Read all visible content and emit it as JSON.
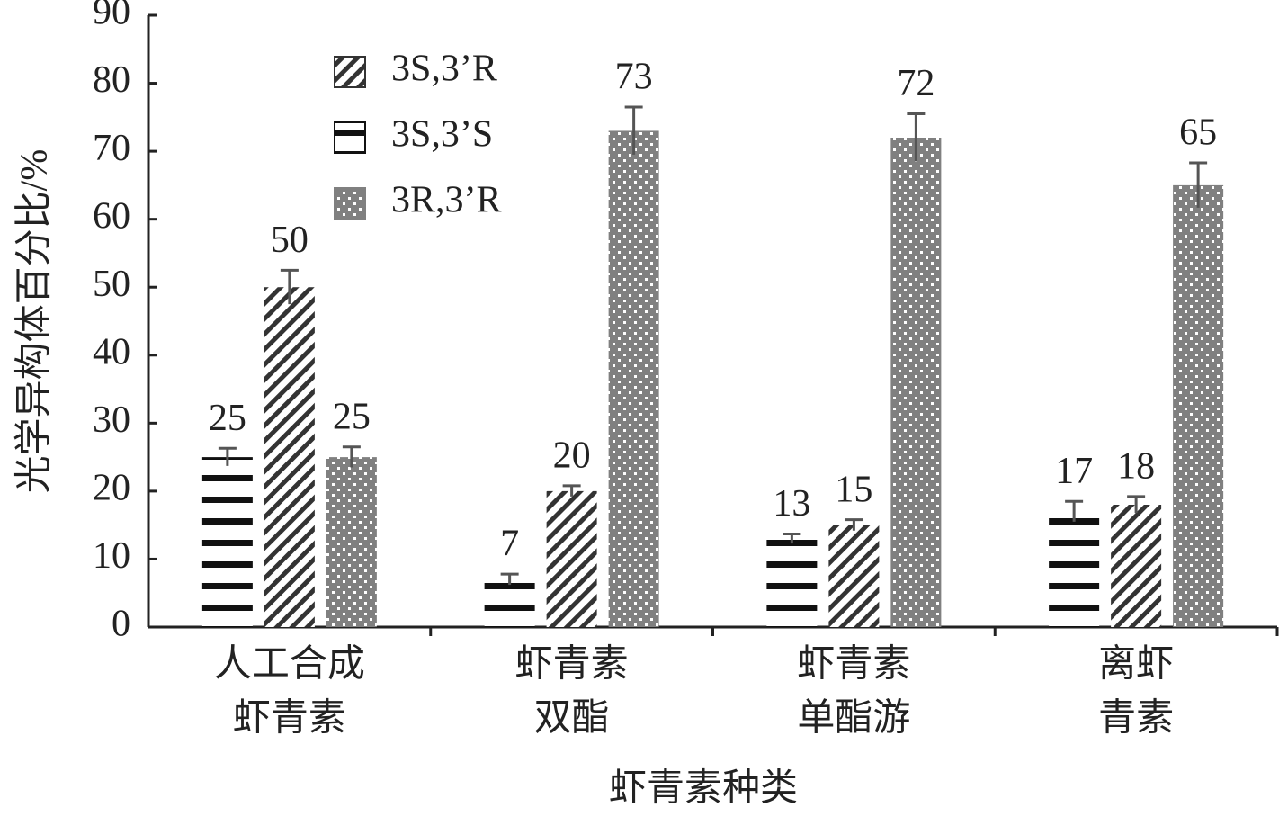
{
  "chart_data": {
    "type": "bar",
    "y_label": "光学异构体百分比/%",
    "x_label": "虾青素种类",
    "categories": [
      [
        "人工合成",
        "虾青素"
      ],
      [
        "虾青素",
        "双酯"
      ],
      [
        "虾青素",
        "单酯游"
      ],
      [
        "离虾",
        "青素"
      ]
    ],
    "series": [
      {
        "name": "3S,3’R",
        "color": "#333333",
        "pattern": "hatch",
        "values": [
          50,
          20,
          15,
          18
        ],
        "errors": [
          2.5,
          0.8,
          0.8,
          1.2
        ]
      },
      {
        "name": "3S,3’S",
        "color": "#111111",
        "pattern": "lines",
        "values": [
          25,
          7,
          13,
          17
        ],
        "errors": [
          1.3,
          0.8,
          0.7,
          1.5
        ]
      },
      {
        "name": "3R,3’R",
        "color": "#808080",
        "pattern": "dots",
        "values": [
          25,
          73,
          72,
          65
        ],
        "errors": [
          1.5,
          3.5,
          3.5,
          3.3
        ]
      }
    ],
    "ylim": [
      0,
      90
    ],
    "yticks": [
      0,
      10,
      20,
      30,
      40,
      50,
      60,
      70,
      80,
      90
    ],
    "legend": "upper-left"
  }
}
